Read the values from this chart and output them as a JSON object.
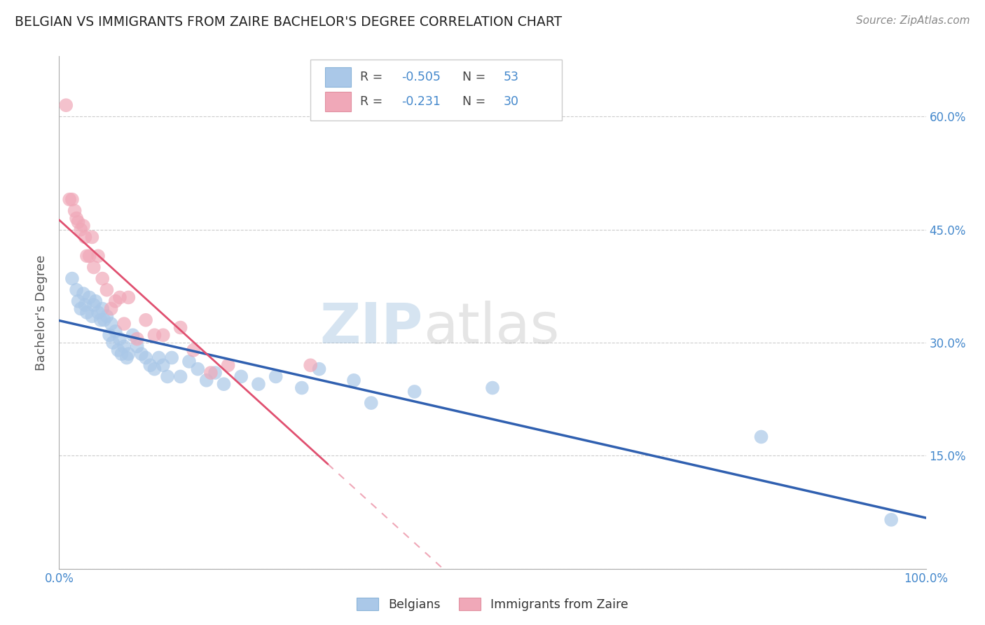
{
  "title": "BELGIAN VS IMMIGRANTS FROM ZAIRE BACHELOR'S DEGREE CORRELATION CHART",
  "source": "Source: ZipAtlas.com",
  "ylabel": "Bachelor's Degree",
  "xlim": [
    0.0,
    1.0
  ],
  "ylim": [
    0.0,
    0.68
  ],
  "xticks": [
    0.0,
    0.25,
    0.5,
    0.75,
    1.0
  ],
  "xtick_labels": [
    "0.0%",
    "",
    "",
    "",
    "100.0%"
  ],
  "yticks": [
    0.0,
    0.15,
    0.3,
    0.45,
    0.6
  ],
  "ytick_labels_right": [
    "",
    "15.0%",
    "30.0%",
    "45.0%",
    "60.0%"
  ],
  "blue_scatter_color": "#aac8e8",
  "pink_scatter_color": "#f0a8b8",
  "blue_line_color": "#3060b0",
  "pink_line_color": "#e05070",
  "legend_R1": "-0.505",
  "legend_N1": "53",
  "legend_R2": "-0.231",
  "legend_N2": "30",
  "watermark_text": "ZIPatlas",
  "belgians_x": [
    0.015,
    0.02,
    0.022,
    0.025,
    0.028,
    0.03,
    0.032,
    0.035,
    0.038,
    0.04,
    0.042,
    0.045,
    0.048,
    0.05,
    0.052,
    0.055,
    0.058,
    0.06,
    0.062,
    0.065,
    0.068,
    0.07,
    0.072,
    0.075,
    0.078,
    0.08,
    0.085,
    0.09,
    0.095,
    0.1,
    0.105,
    0.11,
    0.115,
    0.12,
    0.125,
    0.13,
    0.14,
    0.15,
    0.16,
    0.17,
    0.18,
    0.19,
    0.21,
    0.23,
    0.25,
    0.28,
    0.3,
    0.34,
    0.36,
    0.41,
    0.5,
    0.81,
    0.96
  ],
  "belgians_y": [
    0.385,
    0.37,
    0.355,
    0.345,
    0.365,
    0.35,
    0.34,
    0.36,
    0.335,
    0.35,
    0.355,
    0.34,
    0.33,
    0.345,
    0.33,
    0.335,
    0.31,
    0.325,
    0.3,
    0.315,
    0.29,
    0.305,
    0.285,
    0.295,
    0.28,
    0.285,
    0.31,
    0.295,
    0.285,
    0.28,
    0.27,
    0.265,
    0.28,
    0.27,
    0.255,
    0.28,
    0.255,
    0.275,
    0.265,
    0.25,
    0.26,
    0.245,
    0.255,
    0.245,
    0.255,
    0.24,
    0.265,
    0.25,
    0.22,
    0.235,
    0.24,
    0.175,
    0.065
  ],
  "zaire_x": [
    0.008,
    0.012,
    0.015,
    0.018,
    0.02,
    0.022,
    0.025,
    0.028,
    0.03,
    0.032,
    0.035,
    0.038,
    0.04,
    0.045,
    0.05,
    0.055,
    0.06,
    0.065,
    0.07,
    0.075,
    0.08,
    0.09,
    0.1,
    0.11,
    0.12,
    0.14,
    0.155,
    0.175,
    0.195,
    0.29
  ],
  "zaire_y": [
    0.615,
    0.49,
    0.49,
    0.475,
    0.465,
    0.46,
    0.45,
    0.455,
    0.44,
    0.415,
    0.415,
    0.44,
    0.4,
    0.415,
    0.385,
    0.37,
    0.345,
    0.355,
    0.36,
    0.325,
    0.36,
    0.305,
    0.33,
    0.31,
    0.31,
    0.32,
    0.29,
    0.26,
    0.27,
    0.27
  ]
}
